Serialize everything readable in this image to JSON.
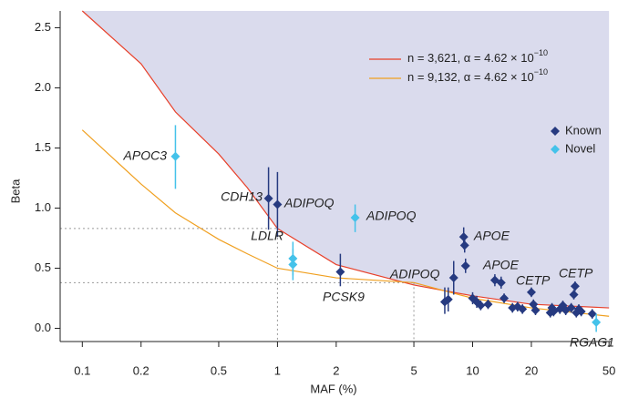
{
  "chart_data": {
    "type": "scatter",
    "x_label": "MAF (%)",
    "y_label": "Beta",
    "log_x": true,
    "xlim": [
      0.077,
      51
    ],
    "ylim": [
      -0.11,
      2.64
    ],
    "xticks": [
      0.1,
      0.2,
      0.5,
      1,
      2,
      5,
      10,
      20,
      50
    ],
    "yticks": [
      {
        "value": 0,
        "label": "0.0"
      },
      0.5,
      {
        "value": 1,
        "label": "1.0"
      },
      1.5,
      {
        "value": 2,
        "label": "2.0"
      },
      2.5
    ],
    "shade_color": "#dadbed",
    "curves": [
      {
        "name": "n = 3,621, α = 4.62 × 10",
        "exponent": "−10",
        "color": "#e8402a",
        "x": [
          0.1,
          0.2,
          0.3,
          0.5,
          0.7,
          1,
          2,
          5,
          10,
          20,
          50
        ],
        "values": [
          2.64,
          2.2,
          1.8,
          1.45,
          1.17,
          0.83,
          0.53,
          0.36,
          0.27,
          0.2,
          0.17
        ]
      },
      {
        "name": "n = 9,132, α = 4.62 × 10",
        "exponent": "−10",
        "color": "#f0a020",
        "x": [
          0.1,
          0.2,
          0.3,
          0.5,
          0.7,
          1,
          2,
          5,
          10,
          20,
          50
        ],
        "values": [
          1.65,
          1.2,
          0.96,
          0.74,
          0.62,
          0.5,
          0.42,
          0.38,
          0.25,
          0.17,
          0.1
        ]
      }
    ],
    "reference_lines": [
      {
        "x": 1,
        "y": 0.83
      },
      {
        "x": 5,
        "y": 0.38
      }
    ],
    "series": [
      {
        "name": "Known",
        "color": "#263a80",
        "x": [
          0.9,
          1.0,
          2.1,
          7.2,
          7.5,
          8,
          9,
          9.1,
          9.2,
          10,
          10.5,
          11,
          12,
          13,
          14,
          14.5,
          16,
          17,
          18,
          20,
          20.5,
          21,
          25,
          25.5,
          26,
          28,
          29,
          30,
          32,
          33,
          33.5,
          34,
          35,
          36,
          41
        ],
        "values": [
          1.08,
          1.03,
          0.47,
          0.22,
          0.24,
          0.42,
          0.76,
          0.69,
          0.52,
          0.25,
          0.22,
          0.19,
          0.2,
          0.4,
          0.38,
          0.25,
          0.17,
          0.18,
          0.16,
          0.3,
          0.2,
          0.15,
          0.13,
          0.17,
          0.14,
          0.16,
          0.19,
          0.15,
          0.17,
          0.28,
          0.35,
          0.13,
          0.16,
          0.14,
          0.12
        ],
        "low": [
          0.82,
          0.76,
          0.35,
          0.12,
          0.14,
          0.28,
          0.66,
          0.63,
          0.46,
          0.2,
          0.17,
          0.15,
          0.16,
          0.35,
          0.33,
          0.21,
          0.13,
          0.14,
          0.12,
          0.26,
          0.16,
          0.11,
          0.09,
          0.13,
          0.1,
          0.12,
          0.15,
          0.11,
          0.13,
          0.24,
          0.31,
          0.09,
          0.12,
          0.1,
          0.08
        ],
        "high": [
          1.34,
          1.3,
          0.62,
          0.34,
          0.34,
          0.56,
          0.84,
          0.75,
          0.58,
          0.3,
          0.27,
          0.23,
          0.24,
          0.45,
          0.43,
          0.29,
          0.21,
          0.22,
          0.2,
          0.34,
          0.24,
          0.19,
          0.17,
          0.21,
          0.18,
          0.2,
          0.23,
          0.19,
          0.21,
          0.32,
          0.39,
          0.17,
          0.2,
          0.18,
          0.16
        ]
      },
      {
        "name": "Novel",
        "color": "#44c2ea",
        "x": [
          0.3,
          1.2,
          1.2,
          2.5,
          43
        ],
        "values": [
          1.43,
          0.58,
          0.53,
          0.92,
          0.05
        ],
        "low": [
          1.16,
          0.44,
          0.4,
          0.8,
          -0.03
        ],
        "high": [
          1.69,
          0.72,
          0.66,
          1.03,
          0.12
        ]
      }
    ],
    "annotations": [
      "APOC3",
      "CDH13",
      "ADIPOQ",
      "ADIPOQ",
      "LDLR",
      "PCSK9",
      "ADIPOQ",
      "APOE",
      "APOE",
      "CETP",
      "CETP",
      "RGAG1"
    ]
  }
}
